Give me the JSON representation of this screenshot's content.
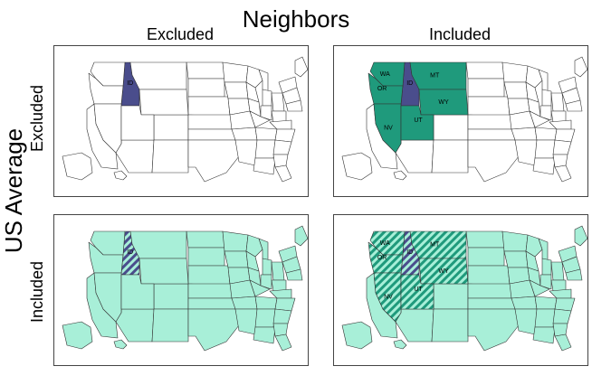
{
  "figure": {
    "title": "Neighbors",
    "column_labels": [
      "Excluded",
      "Included"
    ],
    "row_axis_label": "US Average",
    "row_labels": [
      "Excluded",
      "Included"
    ]
  },
  "colors": {
    "target": "#4a4d8c",
    "neighbor": "#1f9a7c",
    "us_average": "#a8efd8",
    "background": "#ffffff",
    "border": "#333333"
  },
  "target_state": "ID",
  "neighbor_states": [
    "WA",
    "OR",
    "MT",
    "WY",
    "NV",
    "UT"
  ],
  "panels": [
    {
      "id": "ee",
      "row": "Excluded",
      "column": "Excluded",
      "us_fill": false,
      "target_style": "solid",
      "neighbor_style": "none",
      "labels_shown": [
        "ID"
      ]
    },
    {
      "id": "ei",
      "row": "Excluded",
      "column": "Included",
      "us_fill": false,
      "target_style": "solid",
      "neighbor_style": "solid",
      "labels_shown": [
        "WA",
        "OR",
        "ID",
        "MT",
        "WY",
        "NV",
        "UT"
      ]
    },
    {
      "id": "ie",
      "row": "Included",
      "column": "Excluded",
      "us_fill": true,
      "target_style": "hatched",
      "neighbor_style": "none",
      "labels_shown": [
        "ID"
      ]
    },
    {
      "id": "ii",
      "row": "Included",
      "column": "Included",
      "us_fill": true,
      "target_style": "hatched",
      "neighbor_style": "hatched",
      "labels_shown": [
        "WA",
        "OR",
        "ID",
        "MT",
        "WY",
        "NV",
        "UT"
      ]
    }
  ]
}
